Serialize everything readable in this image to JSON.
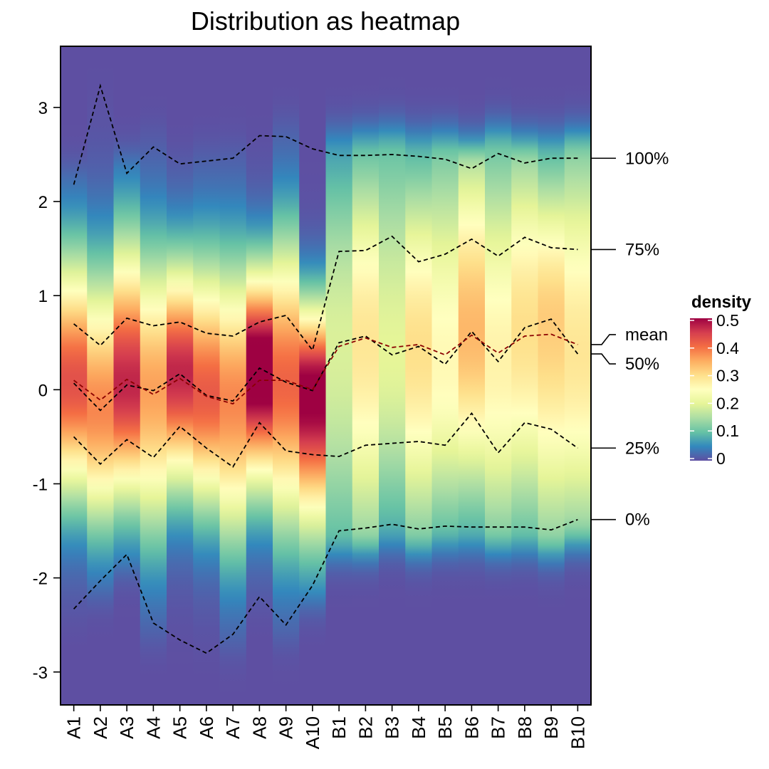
{
  "chart_data": {
    "type": "heatmap",
    "title": "Distribution as heatmap",
    "xlabel": "",
    "ylabel": "",
    "categories": [
      "A1",
      "A2",
      "A3",
      "A4",
      "A5",
      "A6",
      "A7",
      "A8",
      "A9",
      "A10",
      "B1",
      "B2",
      "B3",
      "B4",
      "B5",
      "B6",
      "B7",
      "B8",
      "B9",
      "B10"
    ],
    "ylim": [
      -3.35,
      3.65
    ],
    "yticks": [
      -3,
      -2,
      -1,
      0,
      1,
      2,
      3
    ],
    "density_peaks": {
      "A": [
        0.43,
        0.38,
        0.47,
        0.36,
        0.47,
        0.42,
        0.38,
        0.55,
        0.41,
        0.52
      ],
      "B": [
        0.19,
        0.29,
        0.2,
        0.3,
        0.26,
        0.34,
        0.27,
        0.3,
        0.32,
        0.29
      ]
    },
    "quantiles": {
      "0%": [
        -2.33,
        -2.03,
        -1.75,
        -2.48,
        -2.66,
        -2.8,
        -2.6,
        -2.2,
        -2.5,
        -2.08,
        -1.5,
        -1.47,
        -1.43,
        -1.48,
        -1.45,
        -1.46,
        -1.46,
        -1.46,
        -1.49,
        -1.38
      ],
      "25%": [
        -0.5,
        -0.79,
        -0.53,
        -0.72,
        -0.39,
        -0.62,
        -0.82,
        -0.35,
        -0.65,
        -0.69,
        -0.71,
        -0.59,
        -0.57,
        -0.55,
        -0.59,
        -0.25,
        -0.67,
        -0.35,
        -0.42,
        -0.62
      ],
      "50%": [
        0.07,
        -0.22,
        0.05,
        -0.01,
        0.17,
        -0.06,
        -0.12,
        0.23,
        0.08,
        -0.01,
        0.5,
        0.57,
        0.37,
        0.46,
        0.27,
        0.62,
        0.3,
        0.66,
        0.75,
        0.38
      ],
      "mean": [
        0.1,
        -0.11,
        0.11,
        -0.05,
        0.12,
        -0.07,
        -0.15,
        0.1,
        0.1,
        0.0,
        0.46,
        0.55,
        0.45,
        0.48,
        0.37,
        0.58,
        0.39,
        0.57,
        0.59,
        0.48
      ],
      "75%": [
        0.7,
        0.47,
        0.76,
        0.68,
        0.72,
        0.6,
        0.57,
        0.72,
        0.79,
        0.42,
        1.47,
        1.48,
        1.63,
        1.36,
        1.44,
        1.6,
        1.42,
        1.62,
        1.51,
        1.49
      ],
      "100%": [
        2.18,
        3.23,
        2.3,
        2.58,
        2.4,
        2.43,
        2.46,
        2.7,
        2.69,
        2.56,
        2.49,
        2.49,
        2.5,
        2.48,
        2.45,
        2.35,
        2.51,
        2.41,
        2.46,
        2.46
      ]
    },
    "quantile_labels": [
      "100%",
      "75%",
      "mean",
      "50%",
      "25%",
      "0%"
    ],
    "legend": {
      "title": "density",
      "ticks": [
        0.5,
        0.4,
        0.3,
        0.2,
        0.1,
        0
      ],
      "range": [
        0,
        0.5
      ],
      "position": "right"
    },
    "colors": {
      "scale": [
        "#5E4FA2",
        "#3288BD",
        "#66C2A5",
        "#ABDDA4",
        "#E6F598",
        "#FFFFBF",
        "#FEE08B",
        "#FDAE61",
        "#F46D43",
        "#D53E4F",
        "#9E0142"
      ],
      "mean_line": "#8B0000",
      "quantile_line": "#000000",
      "border": "#000000"
    }
  }
}
